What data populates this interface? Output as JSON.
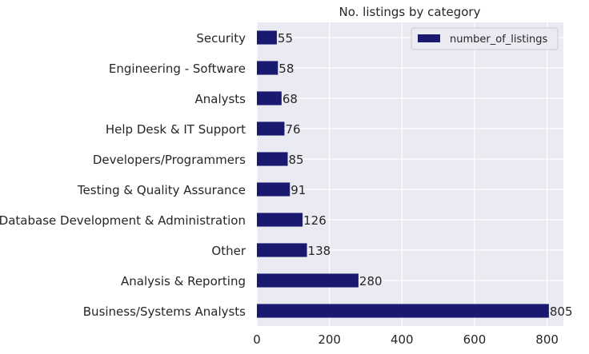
{
  "chart_data": {
    "type": "bar",
    "orientation": "horizontal",
    "title": "No. listings by category",
    "xlabel": "",
    "ylabel": "",
    "categories": [
      "Business/Systems Analysts",
      "Analysis & Reporting",
      "Other",
      "Database Development & Administration",
      "Testing & Quality Assurance",
      "Developers/Programmers",
      "Help Desk & IT Support",
      "Analysts",
      "Engineering - Software",
      "Security"
    ],
    "series": [
      {
        "name": "number_of_listings",
        "values": [
          805,
          280,
          138,
          126,
          91,
          85,
          76,
          68,
          58,
          55
        ],
        "color": "#191970"
      }
    ],
    "xlim": [
      0,
      845
    ],
    "xticks": [
      0,
      200,
      400,
      600,
      800
    ],
    "grid": true,
    "legend": "top-right",
    "background": "#eaeaf2"
  }
}
